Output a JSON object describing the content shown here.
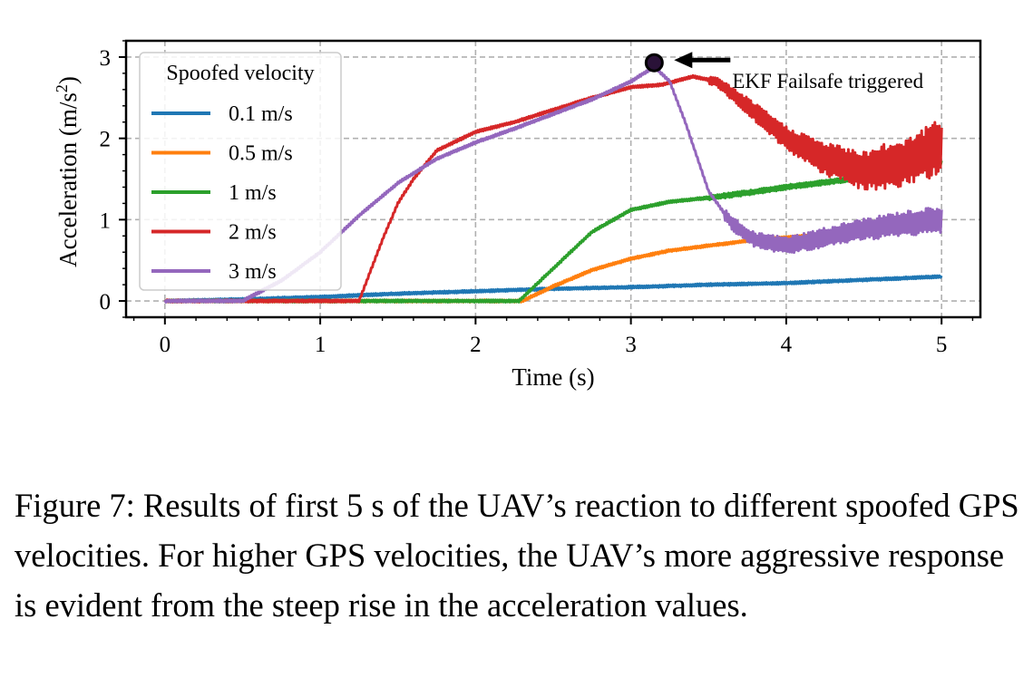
{
  "chart_data": {
    "type": "line",
    "xlabel": "Time (s)",
    "ylabel": "Acceleration (m/s²)",
    "xlim": [
      -0.25,
      5.25
    ],
    "ylim": [
      -0.2,
      3.2
    ],
    "xticks": [
      "0",
      "1",
      "2",
      "3",
      "4",
      "5"
    ],
    "yticks": [
      "0",
      "1",
      "2",
      "3"
    ],
    "grid": true,
    "legend": {
      "title": "Spoofed velocity",
      "placement": "top-left"
    },
    "annotation": {
      "text": "EKF Failsafe triggered",
      "point": [
        3.15,
        2.93
      ]
    },
    "series": [
      {
        "name": "0.1 m/s",
        "color": "#1f77b4",
        "x": [
          0,
          0.5,
          1.0,
          1.5,
          2.0,
          2.5,
          3.0,
          3.5,
          4.0,
          4.5,
          5.0
        ],
        "y": [
          0,
          0.02,
          0.05,
          0.09,
          0.12,
          0.15,
          0.17,
          0.2,
          0.22,
          0.26,
          0.3
        ]
      },
      {
        "name": "0.5 m/s",
        "color": "#ff7f0e",
        "x": [
          0,
          2.3,
          2.5,
          2.75,
          3.0,
          3.25,
          3.5,
          3.75,
          4.0,
          4.25,
          4.5,
          4.75,
          5.0
        ],
        "y": [
          0,
          0,
          0.18,
          0.38,
          0.52,
          0.62,
          0.68,
          0.74,
          0.78,
          0.82,
          0.87,
          0.93,
          1.0
        ]
      },
      {
        "name": "1 m/s",
        "color": "#2ca02c",
        "x": [
          0,
          2.28,
          2.5,
          2.75,
          3.0,
          3.25,
          3.5,
          3.75,
          4.0,
          4.25,
          4.5,
          4.75,
          5.0
        ],
        "y": [
          0,
          0,
          0.4,
          0.85,
          1.12,
          1.22,
          1.27,
          1.33,
          1.4,
          1.46,
          1.52,
          1.6,
          1.7
        ]
      },
      {
        "name": "2 m/s",
        "color": "#d62728",
        "x": [
          0,
          1.25,
          1.4,
          1.5,
          1.6,
          1.75,
          2.0,
          2.25,
          2.5,
          2.75,
          3.0,
          3.2,
          3.4,
          3.55,
          3.75,
          4.0,
          4.25,
          4.5,
          4.75,
          5.0
        ],
        "y": [
          0,
          0,
          0.75,
          1.2,
          1.5,
          1.85,
          2.08,
          2.2,
          2.35,
          2.5,
          2.63,
          2.66,
          2.76,
          2.7,
          2.4,
          2.0,
          1.75,
          1.6,
          1.7,
          1.9
        ]
      },
      {
        "name": "3 m/s",
        "color": "#9467bd",
        "x": [
          0,
          0.5,
          0.75,
          1.0,
          1.25,
          1.5,
          1.75,
          2.0,
          2.25,
          2.5,
          2.75,
          3.0,
          3.15,
          3.25,
          3.35,
          3.5,
          3.65,
          3.8,
          4.0,
          4.25,
          4.5,
          4.75,
          5.0
        ],
        "y": [
          0,
          0,
          0.25,
          0.6,
          1.05,
          1.45,
          1.75,
          1.95,
          2.12,
          2.3,
          2.48,
          2.7,
          2.88,
          2.7,
          2.2,
          1.35,
          0.95,
          0.75,
          0.68,
          0.78,
          0.88,
          0.95,
          1.0
        ]
      }
    ]
  },
  "caption": "Figure 7: Results of first 5 s of the UAV’s reaction to different spoofed GPS velocities. For higher GPS velocities, the UAV’s more aggressive response is evident from the steep rise in the acceleration values."
}
